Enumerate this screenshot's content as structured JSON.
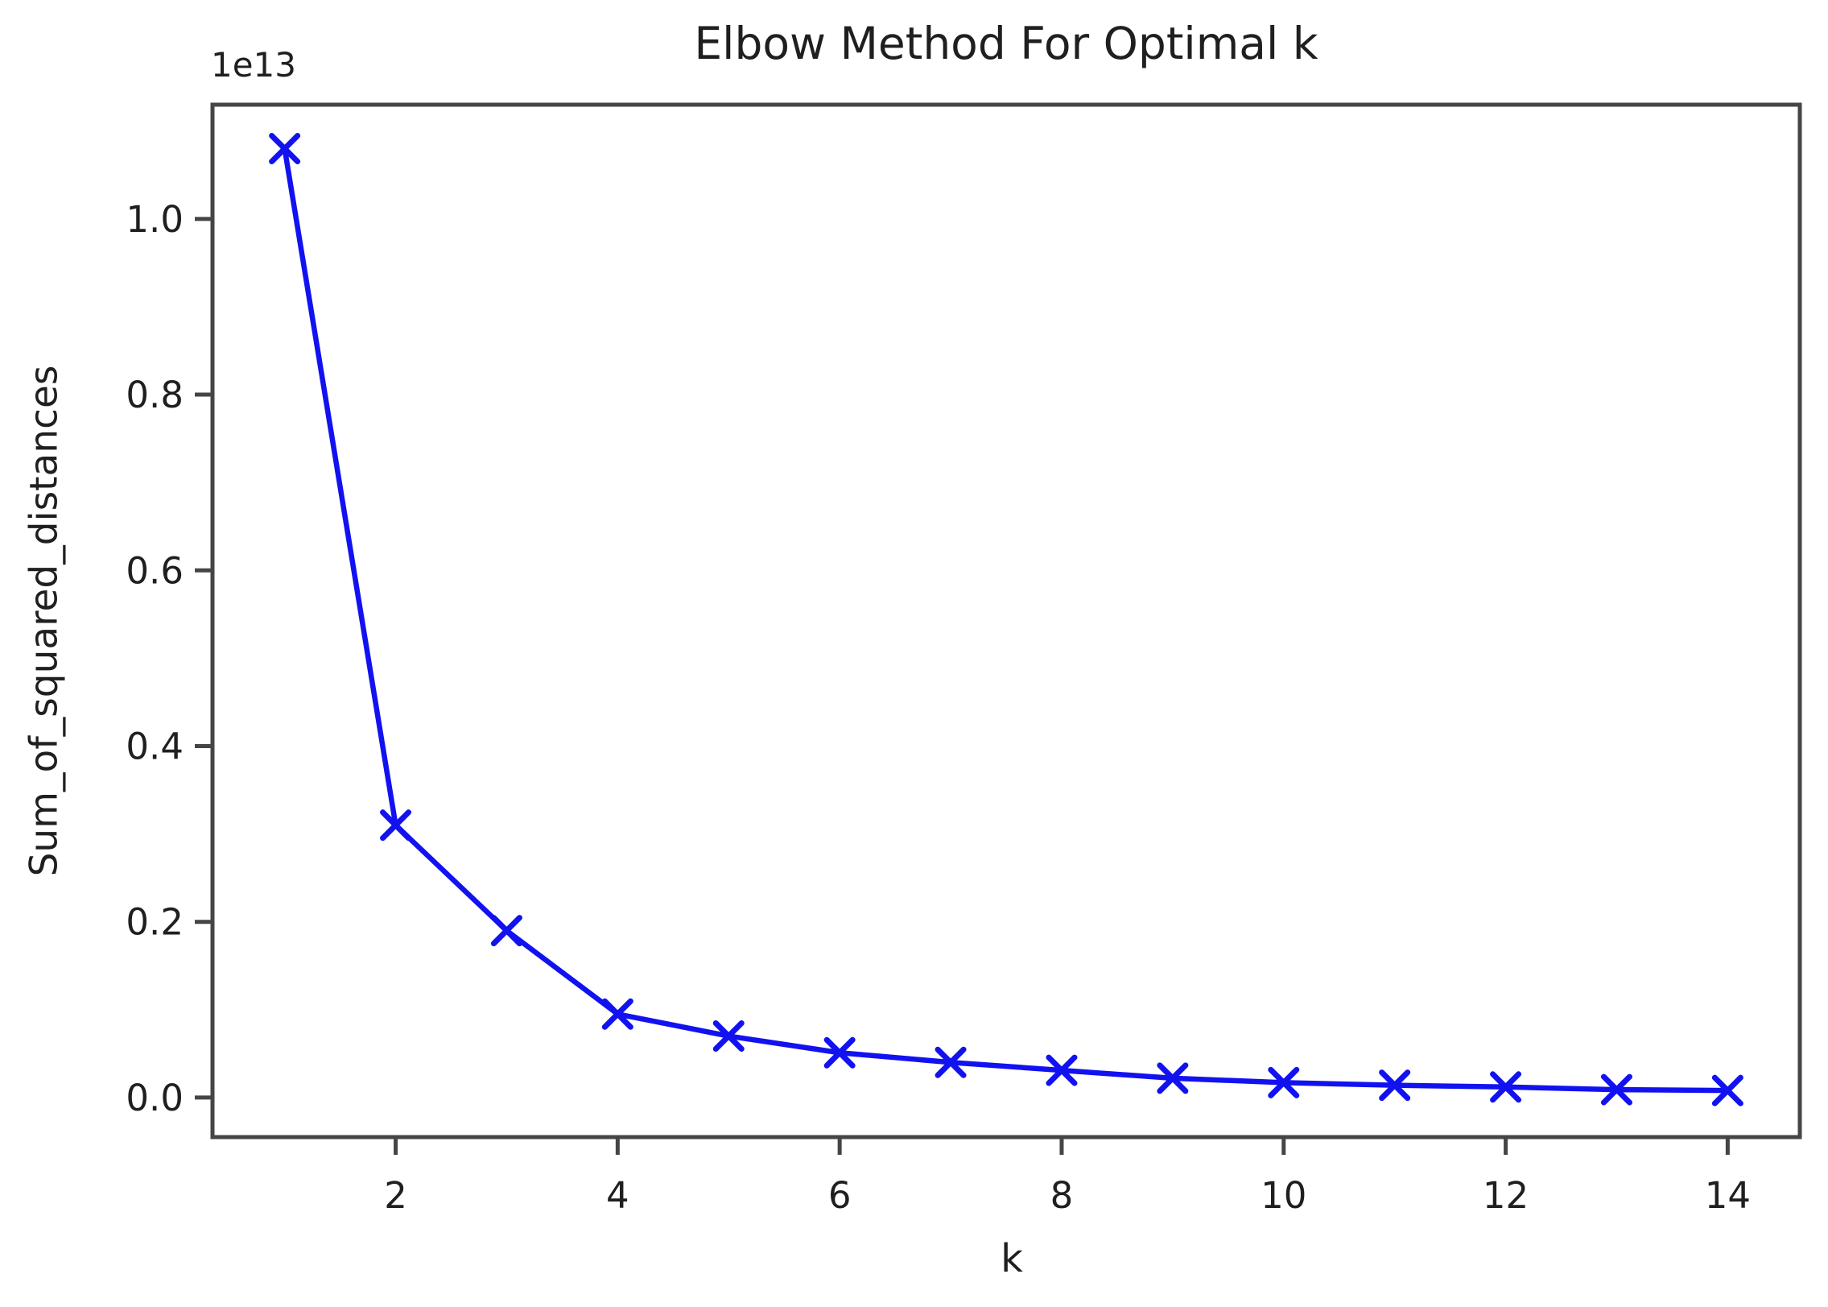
{
  "chart_data": {
    "type": "line",
    "title": "Elbow Method For Optimal k",
    "xlabel": "k",
    "ylabel": "Sum_of_squared_distances",
    "y_offset_label": "1e13",
    "series": [
      {
        "name": "Sum_of_squared_distances",
        "x": [
          1,
          2,
          3,
          4,
          5,
          6,
          7,
          8,
          9,
          10,
          11,
          12,
          13,
          14
        ],
        "values_1e13": [
          1.08,
          0.31,
          0.19,
          0.095,
          0.07,
          0.051,
          0.04,
          0.031,
          0.022,
          0.017,
          0.014,
          0.012,
          0.009,
          0.008
        ],
        "marker": "x",
        "line_color": "#1212f0"
      }
    ],
    "xticks": [
      2,
      4,
      6,
      8,
      10,
      12,
      14
    ],
    "yticks": [
      0.0,
      0.2,
      0.4,
      0.6,
      0.8,
      1.0
    ],
    "xlim": [
      0.35,
      14.65
    ],
    "ylim": [
      -0.045,
      1.13
    ],
    "grid": false,
    "legend": null,
    "colors": {
      "line": "#1212f0",
      "spine": "#454545",
      "text": "#1f1f1f"
    }
  }
}
